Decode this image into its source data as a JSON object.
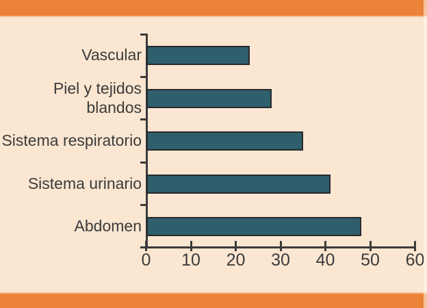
{
  "page": {
    "background_color": "#FAE6D1",
    "band_color": "#EB8239",
    "text_color": "#3B3B3B"
  },
  "chart_data": {
    "type": "bar",
    "orientation": "horizontal",
    "title": "",
    "xlabel": "",
    "ylabel": "",
    "categories": [
      "Vascular",
      "Piel y tejidos blandos",
      "Sistema respiratorio",
      "Sistema urinario",
      "Abdomen"
    ],
    "values": [
      23,
      28,
      35,
      41,
      48
    ],
    "xlim": [
      0,
      60
    ],
    "xticks": [
      0,
      10,
      20,
      30,
      40,
      50,
      60
    ],
    "grid": false,
    "legend": false,
    "bar_color": "#2F5F6D",
    "bar_border_color": "#27292E",
    "axis_color": "#3B3B3B"
  }
}
